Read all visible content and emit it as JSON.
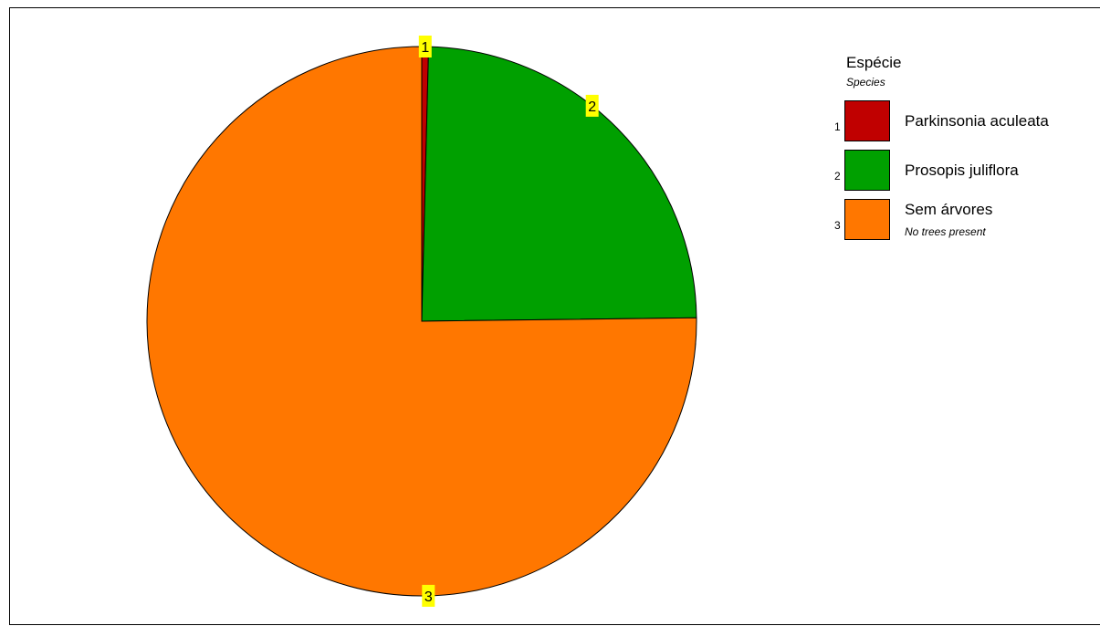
{
  "chart_data": {
    "type": "pie",
    "title": "",
    "legend": {
      "title": "Espécie",
      "subtitle": "Species",
      "placement": "right"
    },
    "slices": [
      {
        "id": "1",
        "label": "Parkinsonia aculeata",
        "sublabel": "",
        "value": 0.4,
        "color": "#c00000"
      },
      {
        "id": "2",
        "label": "Prosopis juliflora",
        "sublabel": "",
        "value": 24.4,
        "color": "#00a000"
      },
      {
        "id": "3",
        "label": "Sem árvores",
        "sublabel": "No trees present",
        "value": 75.2,
        "color": "#ff7700"
      }
    ],
    "slice_label_color": "#ffff00",
    "slice_order": "clockwise-from-top"
  }
}
